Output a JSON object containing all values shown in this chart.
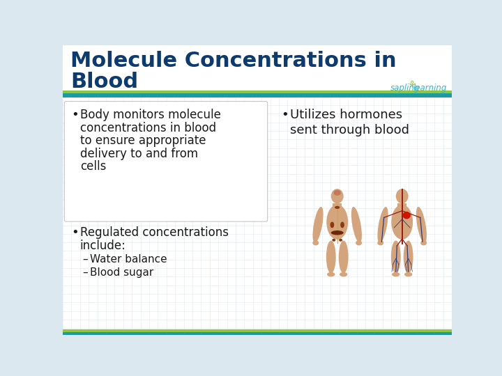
{
  "title_line1": "Molecule Concentrations in",
  "title_line2": "Blood",
  "title_color": "#0d3b6e",
  "background_color": "#dce8ef",
  "white_bg": "#ffffff",
  "header_bar_teal": "#1a9ba1",
  "header_bar_green": "#8dc63f",
  "header_bar_dark_teal": "#1a7a7e",
  "bullet1_text": [
    "Body monitors molecule",
    "concentrations in blood",
    "to ensure appropriate",
    "delivery to and from",
    "cells"
  ],
  "bullet2_text": [
    "Utilizes hormones",
    "sent through blood"
  ],
  "bullet3_text_line1": "Regulated concentrations",
  "bullet3_text_line2": "include:",
  "sub_bullet1": "Water balance",
  "sub_bullet2": "Blood sugar",
  "text_color": "#1a1a1a",
  "logo_sapling": "sapling",
  "logo_learning": "learning",
  "logo_teal": "#3ab5c6",
  "logo_green": "#8dc63f",
  "grid_color": "#c5d5de",
  "skin_color": "#d4a47c",
  "organ_brown": "#8b3a10",
  "organ_dark": "#6b2808",
  "vein_blue": "#2a3a7a",
  "artery_red": "#9b1a10",
  "heart_red": "#cc1500"
}
